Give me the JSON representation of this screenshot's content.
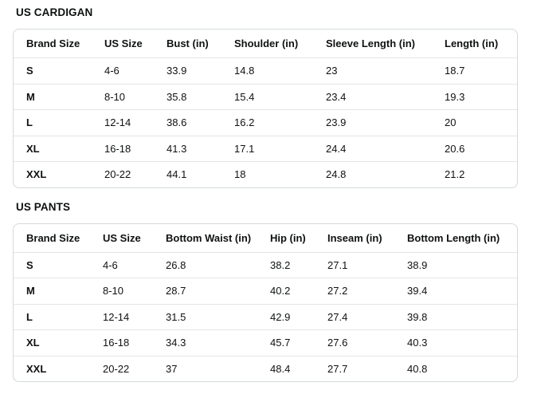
{
  "page": {
    "text_color": "#0f1111",
    "border_color": "#d5d9d9",
    "divider_color": "#e3e6e6",
    "background": "#ffffff"
  },
  "tables": [
    {
      "title": "US CARDIGAN",
      "headers": [
        "Brand Size",
        "US Size",
        "Bust (in)",
        "Shoulder (in)",
        "Sleeve Length (in)",
        "Length (in)"
      ],
      "rows": [
        [
          "S",
          "4-6",
          "33.9",
          "14.8",
          "23",
          "18.7"
        ],
        [
          "M",
          "8-10",
          "35.8",
          "15.4",
          "23.4",
          "19.3"
        ],
        [
          "L",
          "12-14",
          "38.6",
          "16.2",
          "23.9",
          "20"
        ],
        [
          "XL",
          "16-18",
          "41.3",
          "17.1",
          "24.4",
          "20.6"
        ],
        [
          "XXL",
          "20-22",
          "44.1",
          "18",
          "24.8",
          "21.2"
        ]
      ]
    },
    {
      "title": "US PANTS",
      "headers": [
        "Brand Size",
        "US Size",
        "Bottom Waist (in)",
        "Hip (in)",
        "Inseam (in)",
        "Bottom Length (in)"
      ],
      "rows": [
        [
          "S",
          "4-6",
          "26.8",
          "38.2",
          "27.1",
          "38.9"
        ],
        [
          "M",
          "8-10",
          "28.7",
          "40.2",
          "27.2",
          "39.4"
        ],
        [
          "L",
          "12-14",
          "31.5",
          "42.9",
          "27.4",
          "39.8"
        ],
        [
          "XL",
          "16-18",
          "34.3",
          "45.7",
          "27.6",
          "40.3"
        ],
        [
          "XXL",
          "20-22",
          "37",
          "48.4",
          "27.7",
          "40.8"
        ]
      ]
    }
  ]
}
